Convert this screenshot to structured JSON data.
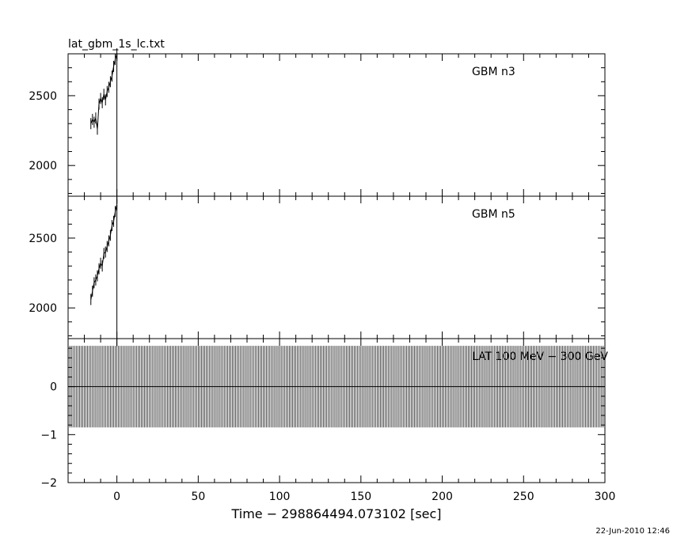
{
  "chart_data": {
    "type": "line",
    "title": "lat_gbm_1s_lc.txt",
    "xlabel": "Time − 298864494.073102 [sec]",
    "xlim": [
      -30,
      300
    ],
    "xticks": [
      0,
      50,
      100,
      150,
      200,
      250,
      300
    ],
    "timestamp": "22-Jun-2010 12:46",
    "panels": [
      {
        "name": "GBM n3",
        "ylim": [
          1780,
          2800
        ],
        "yticks": [
          2000,
          2500
        ],
        "series": [
          {
            "name": "GBM n3",
            "x": [
              -16,
              -15,
              -14,
              -13,
              -12,
              -11,
              -10,
              -9,
              -8,
              -7,
              -6,
              -5,
              -4,
              -3,
              -2,
              -1,
              0
            ],
            "y": [
              2300,
              2330,
              2310,
              2340,
              2260,
              2440,
              2480,
              2450,
              2510,
              2470,
              2530,
              2560,
              2600,
              2640,
              2710,
              2760,
              2800
            ]
          }
        ]
      },
      {
        "name": "GBM n5",
        "ylim": [
          1780,
          2800
        ],
        "yticks": [
          2000,
          2500
        ],
        "series": [
          {
            "name": "GBM n5",
            "x": [
              -16,
              -15,
              -14,
              -13,
              -12,
              -11,
              -10,
              -9,
              -8,
              -7,
              -6,
              -5,
              -4,
              -3,
              -2,
              -1,
              0
            ],
            "y": [
              2060,
              2120,
              2180,
              2200,
              2230,
              2280,
              2320,
              2300,
              2390,
              2400,
              2440,
              2480,
              2520,
              2590,
              2620,
              2690,
              2740
            ]
          }
        ]
      },
      {
        "name": "LAT 100 MeV − 300 GeV",
        "ylim": [
          -2,
          1
        ],
        "yticks": [
          -2,
          -1,
          0
        ],
        "series": [
          {
            "name": "LAT 100 MeV − 300 GeV",
            "x": [
              -30,
              300
            ],
            "y": [
              0,
              0
            ],
            "error_low": -0.85,
            "error_high": 0.85
          }
        ]
      }
    ]
  }
}
